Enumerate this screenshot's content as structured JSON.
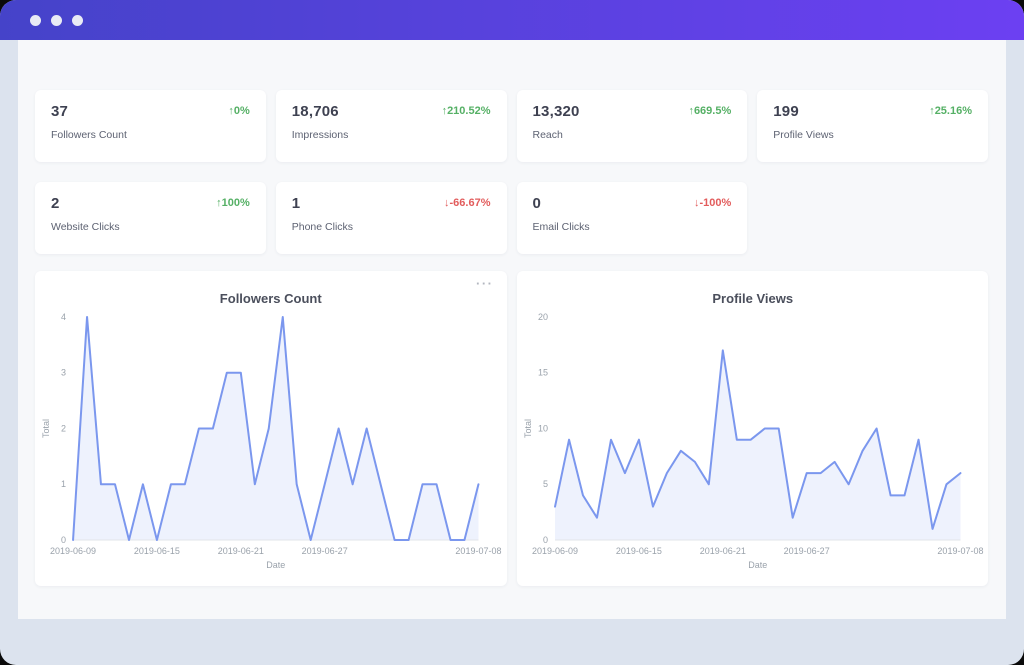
{
  "window": {
    "controls": {
      "dot_count": 3,
      "dot_color": "#e9ebf5"
    }
  },
  "colors": {
    "topbar_gradient_from": "#4543c9",
    "topbar_gradient_to": "#6c40f2",
    "positive": "#55b065",
    "negative": "#e25c5c",
    "chart_line": "#7b97ee",
    "chart_fill": "#7b97ee",
    "frame": "#dce3ee",
    "content_background": "#f7f8fa"
  },
  "stat_cards": [
    {
      "value": "37",
      "delta": "↑0%",
      "direction": "up",
      "label": "Followers Count"
    },
    {
      "value": "18,706",
      "delta": "↑210.52%",
      "direction": "up",
      "label": "Impressions"
    },
    {
      "value": "13,320",
      "delta": "↑669.5%",
      "direction": "up",
      "label": "Reach"
    },
    {
      "value": "199",
      "delta": "↑25.16%",
      "direction": "up",
      "label": "Profile Views"
    },
    {
      "value": "2",
      "delta": "↑100%",
      "direction": "up",
      "label": "Website Clicks"
    },
    {
      "value": "1",
      "delta": "↓-66.67%",
      "direction": "down",
      "label": "Phone Clicks"
    },
    {
      "value": "0",
      "delta": "↓-100%",
      "direction": "down",
      "label": "Email Clicks"
    }
  ],
  "charts_menu": {
    "icon": "···"
  },
  "chart_data": [
    {
      "type": "area",
      "title": "Followers Count",
      "xlabel": "Date",
      "ylabel": "Total",
      "x": [
        "2019-06-09",
        "2019-06-10",
        "2019-06-11",
        "2019-06-12",
        "2019-06-13",
        "2019-06-14",
        "2019-06-15",
        "2019-06-16",
        "2019-06-17",
        "2019-06-18",
        "2019-06-19",
        "2019-06-20",
        "2019-06-21",
        "2019-06-22",
        "2019-06-23",
        "2019-06-24",
        "2019-06-25",
        "2019-06-26",
        "2019-06-27",
        "2019-06-28",
        "2019-06-29",
        "2019-06-30",
        "2019-07-01",
        "2019-07-02",
        "2019-07-03",
        "2019-07-04",
        "2019-07-05",
        "2019-07-06",
        "2019-07-07",
        "2019-07-08"
      ],
      "values": [
        0,
        4,
        1,
        1,
        0,
        1,
        0,
        1,
        1,
        2,
        2,
        3,
        3,
        1,
        2,
        4,
        1,
        0,
        1,
        2,
        1,
        2,
        1,
        0,
        0,
        1,
        1,
        0,
        0,
        1
      ],
      "ylim": [
        0,
        4
      ],
      "yticks": [
        0,
        1,
        2,
        3,
        4
      ],
      "xtick_indices": [
        0,
        6,
        12,
        18,
        29
      ],
      "grid": false,
      "legend": false,
      "line_color": "#7b97ee",
      "fill_color": "#7b97ee"
    },
    {
      "type": "area",
      "title": "Profile Views",
      "xlabel": "Date",
      "ylabel": "Total",
      "x": [
        "2019-06-09",
        "2019-06-10",
        "2019-06-11",
        "2019-06-12",
        "2019-06-13",
        "2019-06-14",
        "2019-06-15",
        "2019-06-16",
        "2019-06-17",
        "2019-06-18",
        "2019-06-19",
        "2019-06-20",
        "2019-06-21",
        "2019-06-22",
        "2019-06-23",
        "2019-06-24",
        "2019-06-25",
        "2019-06-26",
        "2019-06-27",
        "2019-06-28",
        "2019-06-29",
        "2019-06-30",
        "2019-07-01",
        "2019-07-02",
        "2019-07-03",
        "2019-07-04",
        "2019-07-05",
        "2019-07-06",
        "2019-07-07",
        "2019-07-08"
      ],
      "values": [
        3,
        9,
        4,
        2,
        9,
        6,
        9,
        3,
        6,
        8,
        7,
        5,
        17,
        9,
        9,
        10,
        10,
        2,
        6,
        6,
        7,
        5,
        8,
        10,
        4,
        4,
        9,
        1,
        5,
        6
      ],
      "ylim": [
        0,
        20
      ],
      "yticks": [
        0,
        5,
        10,
        15,
        20
      ],
      "xtick_indices": [
        0,
        6,
        12,
        18,
        29
      ],
      "grid": false,
      "legend": false,
      "line_color": "#7b97ee",
      "fill_color": "#7b97ee"
    }
  ]
}
